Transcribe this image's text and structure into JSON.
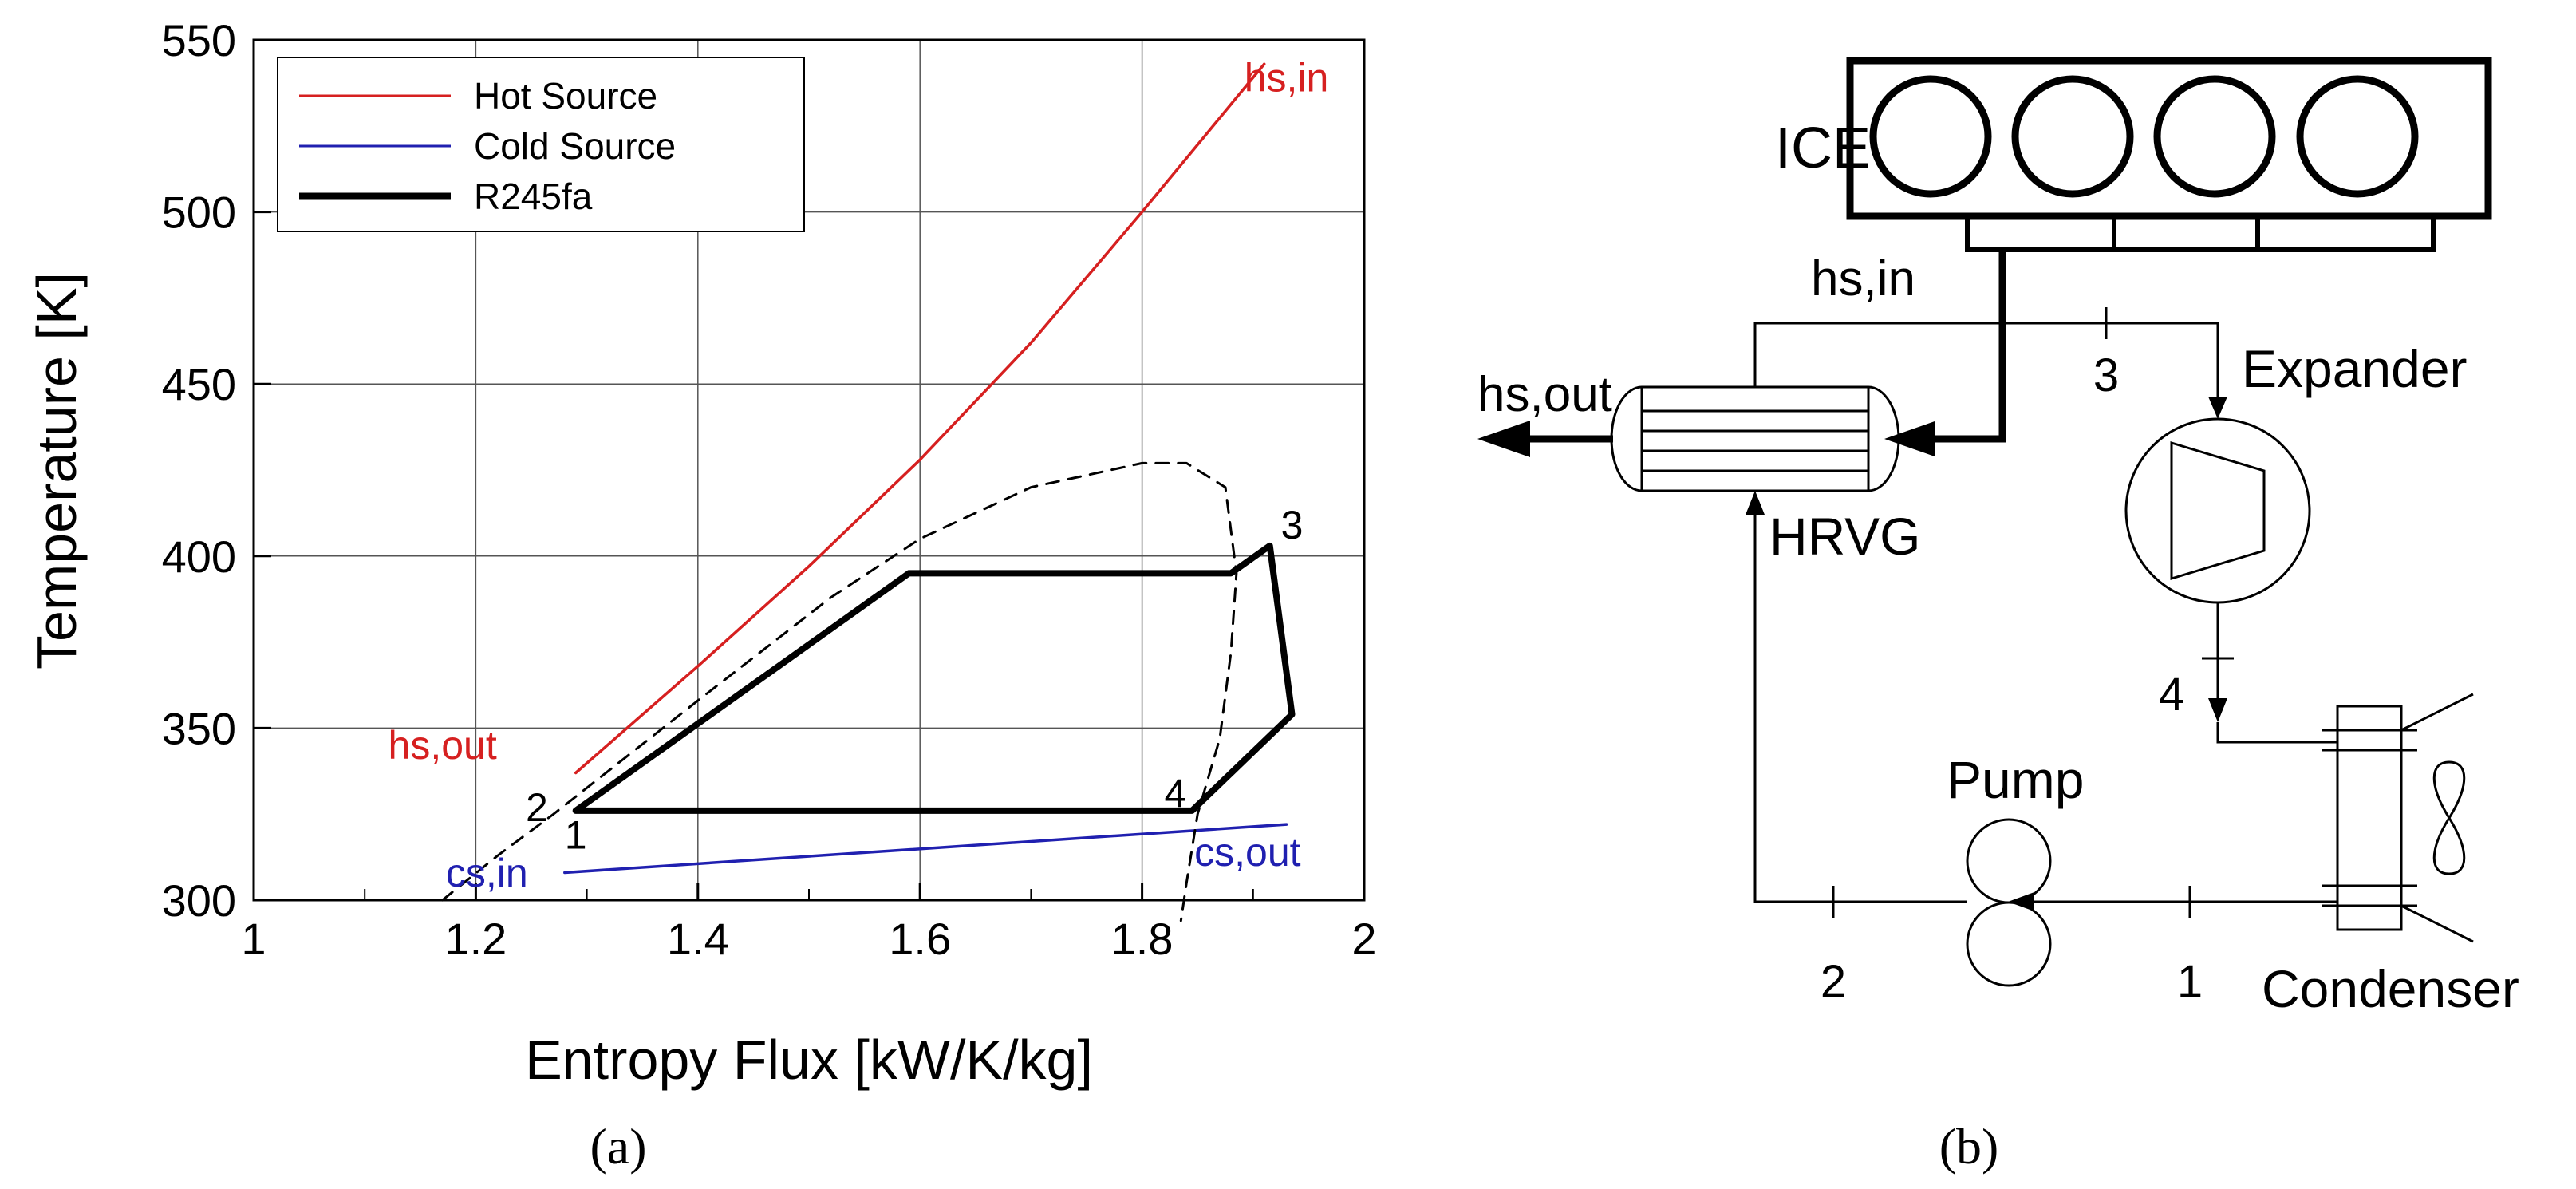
{
  "chart_data": {
    "type": "line",
    "xlabel": "Entropy Flux [kW/K/kg]",
    "ylabel": "Temperature [K]",
    "xlim": [
      1,
      2
    ],
    "ylim": [
      300,
      550
    ],
    "xticks": [
      1,
      1.2,
      1.4,
      1.6,
      1.8,
      2
    ],
    "xtick_labels": [
      "1",
      "1.2",
      "1.4",
      "1.6",
      "1.8",
      "2"
    ],
    "yticks": [
      300,
      350,
      400,
      450,
      500,
      550
    ],
    "ytick_labels": [
      "300",
      "350",
      "400",
      "450",
      "500",
      "550"
    ],
    "grid": true,
    "legend_position": "top-left",
    "series": [
      {
        "name": "Hot Source",
        "color": "#d62020",
        "style": "solid",
        "points": [
          [
            1.29,
            337
          ],
          [
            1.4,
            368
          ],
          [
            1.5,
            397
          ],
          [
            1.6,
            428
          ],
          [
            1.7,
            462
          ],
          [
            1.8,
            500
          ],
          [
            1.91,
            543
          ]
        ]
      },
      {
        "name": "Cold Source",
        "color": "#2020b0",
        "style": "solid",
        "points": [
          [
            1.28,
            308
          ],
          [
            1.93,
            322
          ]
        ]
      },
      {
        "name": "R245fa",
        "color": "#000000",
        "style": "bold",
        "points": [
          [
            1.29,
            326
          ],
          [
            1.59,
            395
          ],
          [
            1.88,
            395
          ],
          [
            1.915,
            403
          ],
          [
            1.935,
            354
          ],
          [
            1.845,
            326
          ],
          [
            1.29,
            326
          ]
        ]
      },
      {
        "color": "#000000",
        "style": "dashed",
        "points": [
          [
            1.17,
            300
          ],
          [
            1.22,
            313
          ],
          [
            1.27,
            325
          ],
          [
            1.4,
            358
          ],
          [
            1.52,
            388
          ],
          [
            1.6,
            405
          ],
          [
            1.7,
            420
          ],
          [
            1.8,
            427
          ],
          [
            1.84,
            427
          ],
          [
            1.875,
            420
          ],
          [
            1.885,
            395
          ],
          [
            1.88,
            372
          ],
          [
            1.87,
            347
          ],
          [
            1.85,
            325
          ],
          [
            1.84,
            305
          ],
          [
            1.835,
            294
          ]
        ]
      }
    ],
    "annotations": [
      {
        "text": "hs,in",
        "x": 1.93,
        "y": 535,
        "color": "#d62020"
      },
      {
        "text": "hs,out",
        "x": 1.17,
        "y": 341,
        "color": "#d62020"
      },
      {
        "text": "cs,in",
        "x": 1.21,
        "y": 304,
        "color": "#2020b0"
      },
      {
        "text": "cs,out",
        "x": 1.895,
        "y": 310,
        "color": "#2020b0"
      },
      {
        "text": "1",
        "x": 1.29,
        "y": 315,
        "color": "#000000"
      },
      {
        "text": "2",
        "x": 1.255,
        "y": 323,
        "color": "#000000"
      },
      {
        "text": "3",
        "x": 1.935,
        "y": 405,
        "color": "#000000"
      },
      {
        "text": "4",
        "x": 1.83,
        "y": 327,
        "color": "#000000"
      }
    ]
  },
  "caption_a": "(a)",
  "caption_b": "(b)",
  "diagram": {
    "ice_label": "ICE",
    "hs_in": "hs,in",
    "hs_out": "hs,out",
    "hrvg": "HRVG",
    "expander": "Expander",
    "pump": "Pump",
    "condenser": "Condenser",
    "state_1": "1",
    "state_2": "2",
    "state_3": "3",
    "state_4": "4"
  }
}
